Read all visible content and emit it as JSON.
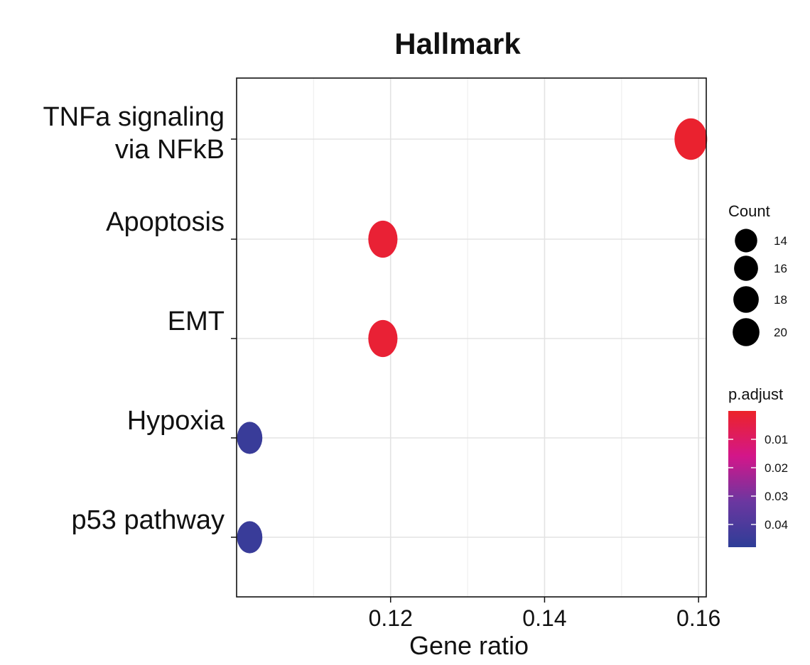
{
  "chart_data": {
    "type": "scatter",
    "title": "Hallmark",
    "xlabel": "Gene ratio",
    "ylabel": "",
    "xlim": [
      0.1,
      0.161
    ],
    "x_ticks": [
      0.12,
      0.14,
      0.16
    ],
    "x_tick_labels": [
      "0.12",
      "0.14",
      "0.16"
    ],
    "grid": true,
    "categories": [
      "TNFa signaling via NFkB",
      "Apoptosis",
      "EMT",
      "Hypoxia",
      "p53 pathway"
    ],
    "category_label_lines": [
      [
        "TNFa signaling",
        "via NFkB"
      ],
      [
        "Apoptosis"
      ],
      [
        "EMT"
      ],
      [
        "Hypoxia"
      ],
      [
        "p53 pathway"
      ]
    ],
    "points": [
      {
        "category": "TNFa signaling via NFkB",
        "x": 0.159,
        "count": 20,
        "p_adjust": 0.001
      },
      {
        "category": "Apoptosis",
        "x": 0.119,
        "count": 16,
        "p_adjust": 0.002
      },
      {
        "category": "EMT",
        "x": 0.119,
        "count": 16,
        "p_adjust": 0.002
      },
      {
        "category": "Hypoxia",
        "x": 0.1017,
        "count": 12,
        "p_adjust": 0.045
      },
      {
        "category": "p53 pathway",
        "x": 0.1017,
        "count": 12,
        "p_adjust": 0.045
      }
    ],
    "legend_size": {
      "title": "Count",
      "values": [
        14,
        16,
        18,
        20
      ],
      "labels": [
        "14",
        "16",
        "18",
        "20"
      ],
      "placement": "right"
    },
    "legend_color": {
      "title": "p.adjust",
      "range": [
        0.0,
        0.048
      ],
      "ticks": [
        0.01,
        0.02,
        0.03,
        0.04
      ],
      "tick_labels": [
        "0.01",
        "0.02",
        "0.03",
        "0.04"
      ],
      "colors": [
        "#ec2329",
        "#d3168a",
        "#6b37a0",
        "#2e3d97"
      ],
      "placement": "right"
    }
  }
}
